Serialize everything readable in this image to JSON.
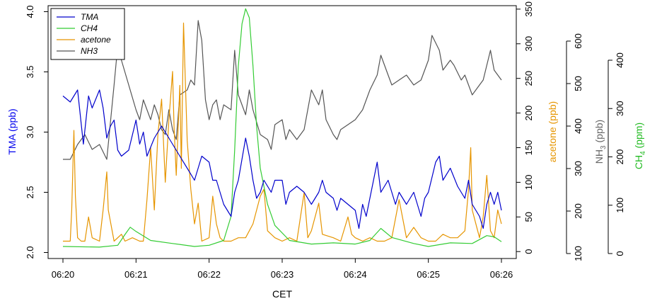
{
  "chart_data": {
    "type": "line",
    "x_start": "06:20",
    "x_end": "06:26",
    "xlabel": "CET",
    "x_ticks": [
      "06:20",
      "06:21",
      "06:22",
      "06:23",
      "06:24",
      "06:25",
      "06:26"
    ],
    "legend": {
      "position": "top-left",
      "entries": [
        {
          "name": "TMA",
          "color": "#0000cc"
        },
        {
          "name": "CH4",
          "color": "#33cc33"
        },
        {
          "name": "acetone",
          "color": "#e69500"
        },
        {
          "name": "NH3",
          "color": "#555555"
        }
      ]
    },
    "axes": {
      "tma": {
        "label": "TMA (ppb)",
        "color": "#0000ee",
        "range": [
          1.95,
          4.05
        ],
        "ticks": [
          "2.0",
          "2.5",
          "3.0",
          "3.5",
          "4.0"
        ]
      },
      "acetone": {
        "label": "acetone (ppb)",
        "color": "#e69500",
        "range": [
          -10,
          355
        ],
        "ticks": [
          "0",
          "50",
          "100",
          "150",
          "200",
          "250",
          "300",
          "350"
        ]
      },
      "nh3": {
        "label_main": "NH",
        "label_sub": "3",
        "label_unit": " (ppb)",
        "color": "#666666",
        "range": [
          100,
          610
        ],
        "ticks": [
          "100",
          "200",
          "300",
          "400",
          "500",
          "600"
        ]
      },
      "ch4": {
        "label_main": "CH",
        "label_sub": "4",
        "label_unit": " (ppm)",
        "color": "#22bb22",
        "range": [
          0,
          420
        ],
        "ticks": [
          "0",
          "100",
          "200",
          "300",
          "400"
        ]
      }
    },
    "series": [
      {
        "name": "TMA",
        "color": "#0000cc",
        "points": [
          [
            0,
            3.3
          ],
          [
            0.1,
            3.25
          ],
          [
            0.2,
            3.35
          ],
          [
            0.28,
            2.9
          ],
          [
            0.35,
            3.3
          ],
          [
            0.4,
            3.2
          ],
          [
            0.5,
            3.35
          ],
          [
            0.55,
            3.2
          ],
          [
            0.6,
            2.95
          ],
          [
            0.65,
            3.05
          ],
          [
            0.7,
            3.1
          ],
          [
            0.75,
            2.85
          ],
          [
            0.8,
            2.8
          ],
          [
            0.9,
            2.85
          ],
          [
            1.0,
            3.1
          ],
          [
            1.05,
            2.9
          ],
          [
            1.1,
            3.0
          ],
          [
            1.15,
            2.8
          ],
          [
            1.25,
            2.95
          ],
          [
            1.35,
            3.05
          ],
          [
            1.5,
            2.9
          ],
          [
            1.6,
            2.8
          ],
          [
            1.7,
            2.7
          ],
          [
            1.8,
            2.6
          ],
          [
            1.9,
            2.8
          ],
          [
            2.0,
            2.75
          ],
          [
            2.05,
            2.6
          ],
          [
            2.1,
            2.6
          ],
          [
            2.2,
            2.4
          ],
          [
            2.3,
            2.3
          ],
          [
            2.35,
            2.5
          ],
          [
            2.4,
            2.6
          ],
          [
            2.5,
            2.95
          ],
          [
            2.55,
            2.8
          ],
          [
            2.6,
            2.6
          ],
          [
            2.65,
            2.45
          ],
          [
            2.7,
            2.5
          ],
          [
            2.75,
            2.6
          ],
          [
            2.85,
            2.5
          ],
          [
            2.9,
            2.6
          ],
          [
            3.0,
            2.6
          ],
          [
            3.05,
            2.4
          ],
          [
            3.1,
            2.5
          ],
          [
            3.2,
            2.55
          ],
          [
            3.3,
            2.5
          ],
          [
            3.4,
            2.4
          ],
          [
            3.5,
            2.5
          ],
          [
            3.55,
            2.6
          ],
          [
            3.6,
            2.5
          ],
          [
            3.7,
            2.45
          ],
          [
            3.75,
            2.35
          ],
          [
            3.8,
            2.45
          ],
          [
            3.9,
            2.4
          ],
          [
            4.0,
            2.35
          ],
          [
            4.05,
            2.2
          ],
          [
            4.1,
            2.4
          ],
          [
            4.15,
            2.3
          ],
          [
            4.3,
            2.75
          ],
          [
            4.35,
            2.5
          ],
          [
            4.45,
            2.6
          ],
          [
            4.55,
            2.4
          ],
          [
            4.6,
            2.5
          ],
          [
            4.7,
            2.4
          ],
          [
            4.8,
            2.5
          ],
          [
            4.9,
            2.3
          ],
          [
            4.95,
            2.45
          ],
          [
            5.0,
            2.5
          ],
          [
            5.1,
            2.75
          ],
          [
            5.15,
            2.8
          ],
          [
            5.2,
            2.6
          ],
          [
            5.3,
            2.7
          ],
          [
            5.4,
            2.55
          ],
          [
            5.5,
            2.45
          ],
          [
            5.55,
            2.6
          ],
          [
            5.6,
            2.4
          ],
          [
            5.7,
            2.3
          ],
          [
            5.75,
            2.2
          ],
          [
            5.8,
            2.4
          ],
          [
            5.85,
            2.5
          ],
          [
            5.9,
            2.4
          ],
          [
            5.95,
            2.5
          ],
          [
            6.0,
            2.35
          ]
        ]
      },
      {
        "name": "CH4",
        "color": "#33cc33",
        "points": [
          [
            0,
            20
          ],
          [
            0.5,
            19
          ],
          [
            0.75,
            22
          ],
          [
            0.85,
            40
          ],
          [
            0.92,
            52
          ],
          [
            1.0,
            45
          ],
          [
            1.2,
            30
          ],
          [
            1.5,
            25
          ],
          [
            1.8,
            20
          ],
          [
            2.0,
            22
          ],
          [
            2.2,
            30
          ],
          [
            2.3,
            70
          ],
          [
            2.35,
            180
          ],
          [
            2.4,
            320
          ],
          [
            2.45,
            390
          ],
          [
            2.5,
            415
          ],
          [
            2.55,
            400
          ],
          [
            2.6,
            320
          ],
          [
            2.65,
            220
          ],
          [
            2.7,
            150
          ],
          [
            2.8,
            90
          ],
          [
            2.9,
            55
          ],
          [
            3.1,
            30
          ],
          [
            3.4,
            24
          ],
          [
            3.7,
            26
          ],
          [
            4.0,
            24
          ],
          [
            4.2,
            30
          ],
          [
            4.35,
            50
          ],
          [
            4.5,
            35
          ],
          [
            4.8,
            25
          ],
          [
            5.0,
            20
          ],
          [
            5.3,
            26
          ],
          [
            5.6,
            25
          ],
          [
            5.8,
            38
          ],
          [
            5.9,
            36
          ],
          [
            6.0,
            28
          ]
        ]
      },
      {
        "name": "acetone",
        "color": "#e69500",
        "points": [
          [
            0,
            15
          ],
          [
            0.1,
            15
          ],
          [
            0.12,
            60
          ],
          [
            0.15,
            175
          ],
          [
            0.17,
            80
          ],
          [
            0.2,
            20
          ],
          [
            0.25,
            15
          ],
          [
            0.3,
            15
          ],
          [
            0.35,
            50
          ],
          [
            0.4,
            20
          ],
          [
            0.5,
            15
          ],
          [
            0.55,
            60
          ],
          [
            0.6,
            115
          ],
          [
            0.62,
            60
          ],
          [
            0.7,
            15
          ],
          [
            0.8,
            25
          ],
          [
            0.85,
            15
          ],
          [
            0.95,
            20
          ],
          [
            1.05,
            15
          ],
          [
            1.1,
            15
          ],
          [
            1.15,
            75
          ],
          [
            1.2,
            150
          ],
          [
            1.25,
            60
          ],
          [
            1.3,
            170
          ],
          [
            1.35,
            220
          ],
          [
            1.4,
            100
          ],
          [
            1.45,
            190
          ],
          [
            1.5,
            260
          ],
          [
            1.52,
            180
          ],
          [
            1.55,
            110
          ],
          [
            1.6,
            240
          ],
          [
            1.62,
            120
          ],
          [
            1.65,
            330
          ],
          [
            1.7,
            160
          ],
          [
            1.75,
            90
          ],
          [
            1.8,
            40
          ],
          [
            1.85,
            70
          ],
          [
            1.9,
            15
          ],
          [
            2.0,
            20
          ],
          [
            2.05,
            80
          ],
          [
            2.1,
            40
          ],
          [
            2.15,
            20
          ],
          [
            2.2,
            15
          ],
          [
            2.3,
            15
          ],
          [
            2.4,
            20
          ],
          [
            2.5,
            20
          ],
          [
            2.6,
            40
          ],
          [
            2.7,
            80
          ],
          [
            2.75,
            90
          ],
          [
            2.8,
            30
          ],
          [
            2.9,
            20
          ],
          [
            3.0,
            15
          ],
          [
            3.1,
            20
          ],
          [
            3.2,
            15
          ],
          [
            3.3,
            85
          ],
          [
            3.35,
            20
          ],
          [
            3.4,
            30
          ],
          [
            3.5,
            70
          ],
          [
            3.55,
            25
          ],
          [
            3.7,
            20
          ],
          [
            3.8,
            15
          ],
          [
            3.9,
            50
          ],
          [
            3.95,
            25
          ],
          [
            4.0,
            20
          ],
          [
            4.1,
            15
          ],
          [
            4.2,
            20
          ],
          [
            4.3,
            15
          ],
          [
            4.4,
            15
          ],
          [
            4.5,
            20
          ],
          [
            4.6,
            75
          ],
          [
            4.7,
            20
          ],
          [
            4.8,
            35
          ],
          [
            4.9,
            20
          ],
          [
            5.0,
            15
          ],
          [
            5.1,
            15
          ],
          [
            5.2,
            25
          ],
          [
            5.3,
            20
          ],
          [
            5.4,
            20
          ],
          [
            5.5,
            30
          ],
          [
            5.55,
            90
          ],
          [
            5.58,
            150
          ],
          [
            5.6,
            60
          ],
          [
            5.7,
            20
          ],
          [
            5.75,
            50
          ],
          [
            5.8,
            110
          ],
          [
            5.85,
            30
          ],
          [
            5.9,
            20
          ],
          [
            5.95,
            60
          ],
          [
            6.0,
            40
          ]
        ]
      },
      {
        "name": "NH3",
        "color": "#555555",
        "points": [
          [
            0,
            300
          ],
          [
            0.1,
            300
          ],
          [
            0.2,
            330
          ],
          [
            0.3,
            350
          ],
          [
            0.4,
            320
          ],
          [
            0.5,
            330
          ],
          [
            0.6,
            300
          ],
          [
            0.7,
            450
          ],
          [
            0.75,
            530
          ],
          [
            0.8,
            500
          ],
          [
            0.9,
            450
          ],
          [
            1.0,
            400
          ],
          [
            1.05,
            380
          ],
          [
            1.1,
            420
          ],
          [
            1.2,
            380
          ],
          [
            1.25,
            410
          ],
          [
            1.3,
            390
          ],
          [
            1.35,
            360
          ],
          [
            1.4,
            350
          ],
          [
            1.45,
            400
          ],
          [
            1.5,
            360
          ],
          [
            1.55,
            340
          ],
          [
            1.6,
            430
          ],
          [
            1.7,
            440
          ],
          [
            1.75,
            460
          ],
          [
            1.8,
            450
          ],
          [
            1.85,
            580
          ],
          [
            1.9,
            540
          ],
          [
            1.95,
            420
          ],
          [
            2.0,
            380
          ],
          [
            2.05,
            410
          ],
          [
            2.1,
            420
          ],
          [
            2.15,
            380
          ],
          [
            2.2,
            410
          ],
          [
            2.3,
            400
          ],
          [
            2.35,
            520
          ],
          [
            2.4,
            430
          ],
          [
            2.5,
            390
          ],
          [
            2.55,
            440
          ],
          [
            2.6,
            400
          ],
          [
            2.7,
            350
          ],
          [
            2.8,
            340
          ],
          [
            2.85,
            320
          ],
          [
            2.9,
            370
          ],
          [
            3.0,
            380
          ],
          [
            3.05,
            340
          ],
          [
            3.1,
            360
          ],
          [
            3.2,
            340
          ],
          [
            3.3,
            360
          ],
          [
            3.4,
            440
          ],
          [
            3.5,
            410
          ],
          [
            3.55,
            440
          ],
          [
            3.6,
            380
          ],
          [
            3.7,
            350
          ],
          [
            3.75,
            340
          ],
          [
            3.8,
            360
          ],
          [
            3.9,
            370
          ],
          [
            4.0,
            380
          ],
          [
            4.1,
            400
          ],
          [
            4.2,
            440
          ],
          [
            4.3,
            470
          ],
          [
            4.35,
            510
          ],
          [
            4.45,
            470
          ],
          [
            4.5,
            450
          ],
          [
            4.6,
            460
          ],
          [
            4.7,
            470
          ],
          [
            4.8,
            450
          ],
          [
            4.9,
            460
          ],
          [
            5.0,
            500
          ],
          [
            5.05,
            550
          ],
          [
            5.15,
            520
          ],
          [
            5.2,
            480
          ],
          [
            5.3,
            500
          ],
          [
            5.35,
            490
          ],
          [
            5.45,
            460
          ],
          [
            5.5,
            470
          ],
          [
            5.6,
            430
          ],
          [
            5.7,
            450
          ],
          [
            5.75,
            460
          ],
          [
            5.85,
            520
          ],
          [
            5.9,
            480
          ],
          [
            6.0,
            460
          ]
        ]
      }
    ]
  }
}
